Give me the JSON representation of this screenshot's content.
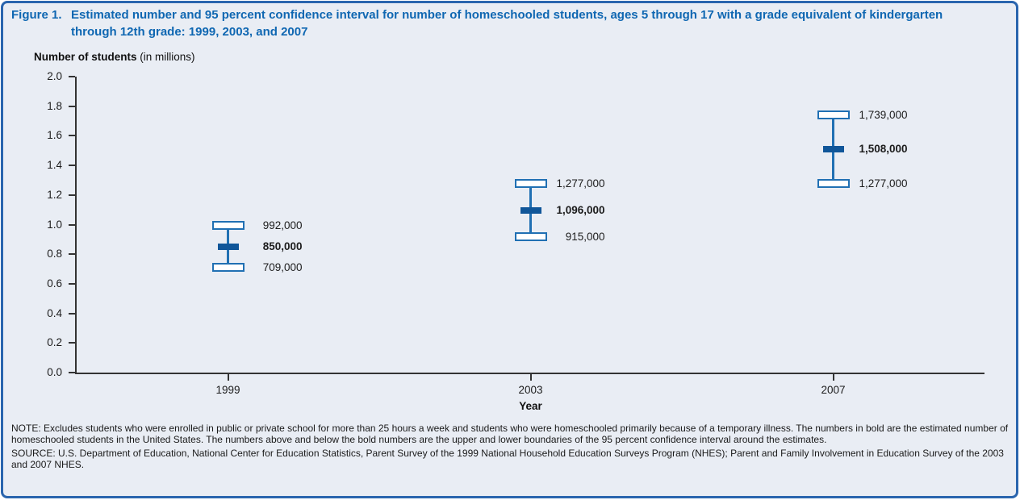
{
  "figure": {
    "label": "Figure 1.",
    "title": "Estimated number and 95 percent confidence interval for number of homeschooled students, ages 5 through 17 with a grade equivalent of kindergarten through 12th grade: 1999, 2003, and 2007"
  },
  "axis": {
    "y_title_bold": "Number of students",
    "y_title_unit": " (in millions)",
    "x_label": "Year",
    "y_ticks": [
      "2.0",
      "1.8",
      "1.6",
      "1.4",
      "1.2",
      "1.0",
      "0.8",
      "0.6",
      "0.4",
      "0.2",
      "0.0"
    ]
  },
  "chart_data": {
    "type": "errorbar",
    "title": "Estimated number and 95 percent confidence interval for number of homeschooled students, ages 5 through 17 with a grade equivalent of kindergarten through 12th grade: 1999, 2003, and 2007",
    "xlabel": "Year",
    "ylabel": "Number of students (in millions)",
    "ylim": [
      0.0,
      2.0
    ],
    "ytick_step": 0.2,
    "grid": false,
    "legend": "none",
    "categories": [
      "1999",
      "2003",
      "2007"
    ],
    "series": [
      {
        "year": "1999",
        "estimate": 850000,
        "ci_lower": 709000,
        "ci_upper": 992000,
        "labels": {
          "upper": "992,000",
          "estimate": "850,000",
          "lower": "709,000"
        }
      },
      {
        "year": "2003",
        "estimate": 1096000,
        "ci_lower": 915000,
        "ci_upper": 1277000,
        "labels": {
          "upper": "1,277,000",
          "estimate": "1,096,000",
          "lower": "915,000"
        }
      },
      {
        "year": "2007",
        "estimate": 1508000,
        "ci_lower": 1277000,
        "ci_upper": 1739000,
        "labels": {
          "upper": "1,739,000",
          "estimate": "1,508,000",
          "lower": "1,277,000"
        }
      }
    ]
  },
  "notes": {
    "note": "NOTE: Excludes students who were enrolled in public or private school for more than 25 hours a week and students who were homeschooled primarily because of a temporary illness. The numbers in bold are the estimated number of homeschooled students in the United States. The numbers above and below the bold numbers are the upper and lower boundaries of the 95 percent confidence interval around the estimates.",
    "source": "SOURCE: U.S. Department of Education, National Center for Education Statistics, Parent Survey of the 1999 National Household Education Surveys Program (NHES); Parent and Family Involvement in Education Survey of the 2003 and 2007 NHES."
  },
  "colors": {
    "border": "#2a65ae",
    "title_blue": "#0f67b2",
    "background": "#e9edf4",
    "axis": "#333333",
    "ci_bar": "#2070b3",
    "estimate_tick": "#105699",
    "text": "#1a1a1a"
  }
}
